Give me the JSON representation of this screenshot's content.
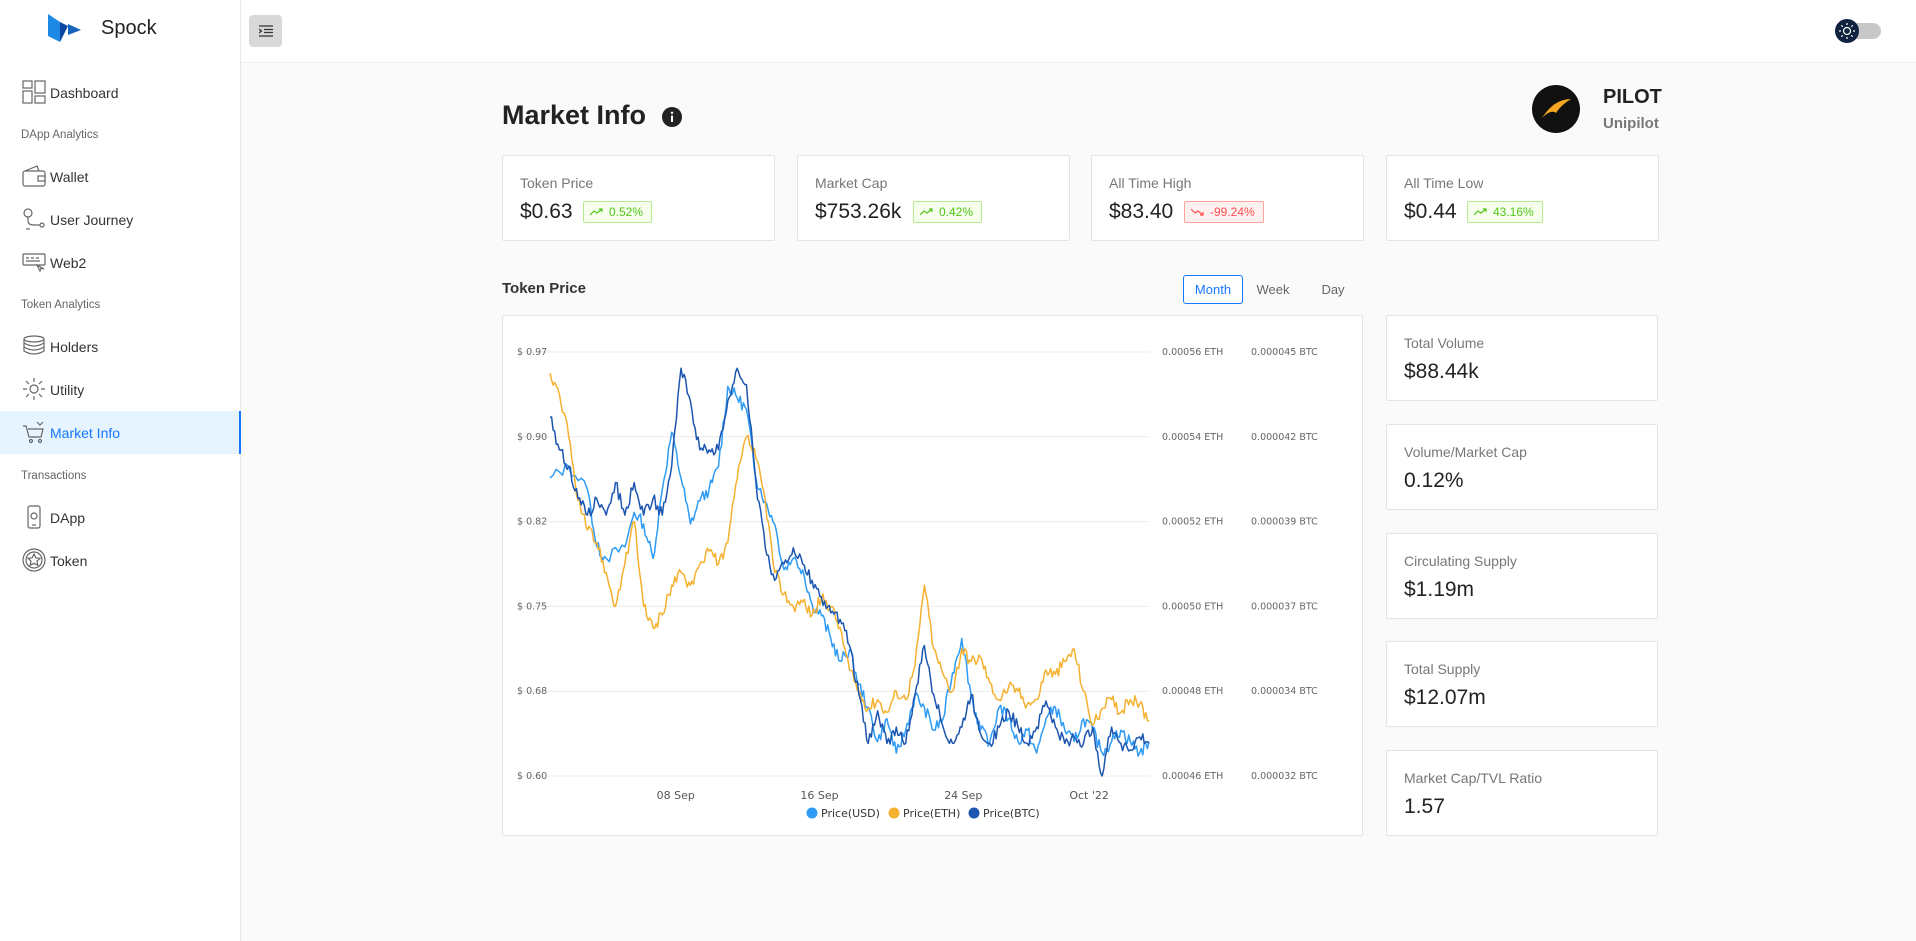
{
  "app": {
    "name": "Spock"
  },
  "sidebar": {
    "items": [
      {
        "label": "Dashboard"
      },
      {
        "section": "DApp Analytics"
      },
      {
        "label": "Wallet"
      },
      {
        "label": "User Journey"
      },
      {
        "label": "Web2"
      },
      {
        "section": "Token Analytics"
      },
      {
        "label": "Holders"
      },
      {
        "label": "Utility"
      },
      {
        "label": "Market Info",
        "active": true
      },
      {
        "section": "Transactions"
      },
      {
        "label": "DApp"
      },
      {
        "label": "Token"
      }
    ]
  },
  "page": {
    "title": "Market Info"
  },
  "token": {
    "symbol": "PILOT",
    "name": "Unipilot"
  },
  "stats": [
    {
      "label": "Token Price",
      "value": "$0.63",
      "change": "0.52%",
      "direction": "up"
    },
    {
      "label": "Market Cap",
      "value": "$753.26k",
      "change": "0.42%",
      "direction": "up"
    },
    {
      "label": "All Time High",
      "value": "$83.40",
      "change": "-99.24%",
      "direction": "down"
    },
    {
      "label": "All Time Low",
      "value": "$0.44",
      "change": "43.16%",
      "direction": "up"
    }
  ],
  "chart_section": {
    "title": "Token Price",
    "ranges": [
      "Month",
      "Week",
      "Day"
    ],
    "active_range": "Month"
  },
  "side_stats": [
    {
      "label": "Total Volume",
      "value": "$88.44k"
    },
    {
      "label": "Volume/Market Cap",
      "value": "0.12%"
    },
    {
      "label": "Circulating Supply",
      "value": "$1.19m"
    },
    {
      "label": "Total Supply",
      "value": "$12.07m"
    },
    {
      "label": "Market Cap/TVL Ratio",
      "value": "1.57"
    }
  ],
  "colors": {
    "accent": "#1677ff",
    "usd": "#2f9bf5",
    "eth": "#f5b12f",
    "btc": "#1d56b0",
    "up": "#52c41a",
    "down": "#ff4d4f"
  },
  "chart_data": {
    "type": "line",
    "x_ticks": [
      "08 Sep",
      "16 Sep",
      "24 Sep",
      "Oct '22"
    ],
    "y_axes": [
      {
        "ticks": [
          "$ 0.97",
          "$ 0.90",
          "$ 0.82",
          "$ 0.75",
          "$ 0.68",
          "$ 0.60"
        ],
        "range": [
          0.6,
          0.97
        ]
      },
      {
        "ticks": [
          "0.00056 ETH",
          "0.00054 ETH",
          "0.00052 ETH",
          "0.00050 ETH",
          "0.00048 ETH",
          "0.00046 ETH"
        ],
        "range": [
          0.00046,
          0.00056
        ]
      },
      {
        "ticks": [
          "0.000045 BTC",
          "0.000042 BTC",
          "0.000039 BTC",
          "0.000037 BTC",
          "0.000034 BTC",
          "0.000032 BTC"
        ],
        "range": [
          3.2e-05,
          4.5e-05
        ]
      }
    ],
    "grid": true,
    "legend": "bottom",
    "series": [
      {
        "name": "Price(USD)",
        "color": "#2f9bf5",
        "axis": 0,
        "points": [
          [
            0,
            0.86
          ],
          [
            2,
            0.87
          ],
          [
            4,
            0.85
          ],
          [
            5,
            0.8
          ],
          [
            6,
            0.79
          ],
          [
            8,
            0.8
          ],
          [
            9,
            0.83
          ],
          [
            10,
            0.82
          ],
          [
            11,
            0.79
          ],
          [
            12,
            0.85
          ],
          [
            13,
            0.9
          ],
          [
            14,
            0.86
          ],
          [
            15,
            0.82
          ],
          [
            16,
            0.84
          ],
          [
            17,
            0.85
          ],
          [
            18,
            0.87
          ],
          [
            19,
            0.94
          ],
          [
            20,
            0.93
          ],
          [
            21,
            0.92
          ],
          [
            22,
            0.86
          ],
          [
            23,
            0.84
          ],
          [
            24,
            0.82
          ],
          [
            25,
            0.78
          ],
          [
            26,
            0.79
          ],
          [
            27,
            0.78
          ],
          [
            28,
            0.75
          ],
          [
            29,
            0.74
          ],
          [
            30,
            0.72
          ],
          [
            31,
            0.7
          ],
          [
            32,
            0.71
          ],
          [
            33,
            0.68
          ],
          [
            34,
            0.66
          ],
          [
            35,
            0.63
          ],
          [
            36,
            0.65
          ],
          [
            37,
            0.62
          ],
          [
            38,
            0.64
          ],
          [
            39,
            0.67
          ],
          [
            40,
            0.66
          ],
          [
            41,
            0.64
          ],
          [
            42,
            0.65
          ],
          [
            43,
            0.69
          ],
          [
            44,
            0.72
          ],
          [
            45,
            0.67
          ],
          [
            46,
            0.64
          ],
          [
            47,
            0.63
          ],
          [
            48,
            0.66
          ],
          [
            49,
            0.65
          ],
          [
            50,
            0.63
          ],
          [
            51,
            0.64
          ],
          [
            52,
            0.62
          ],
          [
            53,
            0.65
          ],
          [
            54,
            0.66
          ],
          [
            55,
            0.64
          ],
          [
            56,
            0.63
          ],
          [
            57,
            0.65
          ],
          [
            58,
            0.64
          ],
          [
            59,
            0.62
          ],
          [
            60,
            0.63
          ],
          [
            61,
            0.64
          ],
          [
            62,
            0.63
          ],
          [
            63,
            0.62
          ],
          [
            64,
            0.63
          ]
        ]
      },
      {
        "name": "Price(ETH)",
        "color": "#f5b12f",
        "axis": 1,
        "points": [
          [
            0,
            0.000555
          ],
          [
            1,
            0.00055
          ],
          [
            2,
            0.00054
          ],
          [
            3,
            0.000525
          ],
          [
            4,
            0.000518
          ],
          [
            5,
            0.000515
          ],
          [
            6,
            0.000508
          ],
          [
            7,
            0.0005
          ],
          [
            8,
            0.00051
          ],
          [
            9,
            0.00052
          ],
          [
            10,
            0.0005
          ],
          [
            11,
            0.000495
          ],
          [
            12,
            0.000498
          ],
          [
            13,
            0.000505
          ],
          [
            14,
            0.000508
          ],
          [
            15,
            0.000505
          ],
          [
            16,
            0.00051
          ],
          [
            17,
            0.000513
          ],
          [
            18,
            0.00051
          ],
          [
            19,
            0.000515
          ],
          [
            20,
            0.00053
          ],
          [
            21,
            0.00054
          ],
          [
            22,
            0.000535
          ],
          [
            23,
            0.000525
          ],
          [
            24,
            0.000508
          ],
          [
            25,
            0.000503
          ],
          [
            26,
            0.0005
          ],
          [
            27,
            0.000501
          ],
          [
            28,
            0.000498
          ],
          [
            29,
            0.000502
          ],
          [
            30,
            0.0005
          ],
          [
            31,
            0.000495
          ],
          [
            32,
            0.000485
          ],
          [
            33,
            0.00048
          ],
          [
            34,
            0.000476
          ],
          [
            35,
            0.000478
          ],
          [
            36,
            0.000475
          ],
          [
            37,
            0.00048
          ],
          [
            38,
            0.000478
          ],
          [
            39,
            0.000486
          ],
          [
            40,
            0.000505
          ],
          [
            41,
            0.00049
          ],
          [
            42,
            0.000484
          ],
          [
            43,
            0.00048
          ],
          [
            44,
            0.00049
          ],
          [
            45,
            0.000487
          ],
          [
            46,
            0.000488
          ],
          [
            47,
            0.000482
          ],
          [
            48,
            0.000478
          ],
          [
            49,
            0.000481
          ],
          [
            50,
            0.00048
          ],
          [
            51,
            0.000477
          ],
          [
            52,
            0.000478
          ],
          [
            53,
            0.000485
          ],
          [
            54,
            0.000484
          ],
          [
            55,
            0.000487
          ],
          [
            56,
            0.00049
          ],
          [
            57,
            0.00048
          ],
          [
            58,
            0.000472
          ],
          [
            59,
            0.000476
          ],
          [
            60,
            0.000478
          ],
          [
            61,
            0.000475
          ],
          [
            62,
            0.000478
          ],
          [
            63,
            0.000477
          ],
          [
            64,
            0.000473
          ]
        ]
      },
      {
        "name": "Price(BTC)",
        "color": "#1d56b0",
        "axis": 2,
        "points": [
          [
            0,
            4.3e-05
          ],
          [
            1,
            4.2e-05
          ],
          [
            2,
            4.15e-05
          ],
          [
            3,
            4.05e-05
          ],
          [
            4,
            4e-05
          ],
          [
            5,
            4.05e-05
          ],
          [
            6,
            4e-05
          ],
          [
            7,
            4.1e-05
          ],
          [
            8,
            4e-05
          ],
          [
            9,
            4.1e-05
          ],
          [
            10,
            4e-05
          ],
          [
            11,
            4.05e-05
          ],
          [
            12,
            4e-05
          ],
          [
            13,
            4.15e-05
          ],
          [
            14,
            4.45e-05
          ],
          [
            15,
            4.35e-05
          ],
          [
            16,
            4.2e-05
          ],
          [
            17,
            4.2e-05
          ],
          [
            18,
            4.2e-05
          ],
          [
            19,
            4.35e-05
          ],
          [
            20,
            4.45e-05
          ],
          [
            21,
            4.4e-05
          ],
          [
            22,
            4.1e-05
          ],
          [
            23,
            3.9e-05
          ],
          [
            24,
            3.8e-05
          ],
          [
            25,
            3.85e-05
          ],
          [
            26,
            3.9e-05
          ],
          [
            27,
            3.85e-05
          ],
          [
            28,
            3.8e-05
          ],
          [
            29,
            3.75e-05
          ],
          [
            30,
            3.7e-05
          ],
          [
            31,
            3.68e-05
          ],
          [
            32,
            3.6e-05
          ],
          [
            33,
            3.45e-05
          ],
          [
            34,
            3.3e-05
          ],
          [
            35,
            3.4e-05
          ],
          [
            36,
            3.3e-05
          ],
          [
            37,
            3.35e-05
          ],
          [
            38,
            3.3e-05
          ],
          [
            39,
            3.45e-05
          ],
          [
            40,
            3.6e-05
          ],
          [
            41,
            3.45e-05
          ],
          [
            42,
            3.35e-05
          ],
          [
            43,
            3.3e-05
          ],
          [
            44,
            3.35e-05
          ],
          [
            45,
            3.45e-05
          ],
          [
            46,
            3.33e-05
          ],
          [
            47,
            3.3e-05
          ],
          [
            48,
            3.35e-05
          ],
          [
            49,
            3.4e-05
          ],
          [
            50,
            3.35e-05
          ],
          [
            51,
            3.3e-05
          ],
          [
            52,
            3.35e-05
          ],
          [
            53,
            3.43e-05
          ],
          [
            54,
            3.35e-05
          ],
          [
            55,
            3.3e-05
          ],
          [
            56,
            3.32e-05
          ],
          [
            57,
            3.3e-05
          ],
          [
            58,
            3.35e-05
          ],
          [
            59,
            3.2e-05
          ],
          [
            60,
            3.35e-05
          ],
          [
            61,
            3.3e-05
          ],
          [
            62,
            3.28e-05
          ],
          [
            63,
            3.32e-05
          ],
          [
            64,
            3.3e-05
          ]
        ]
      }
    ],
    "x_range": [
      0,
      64
    ]
  }
}
